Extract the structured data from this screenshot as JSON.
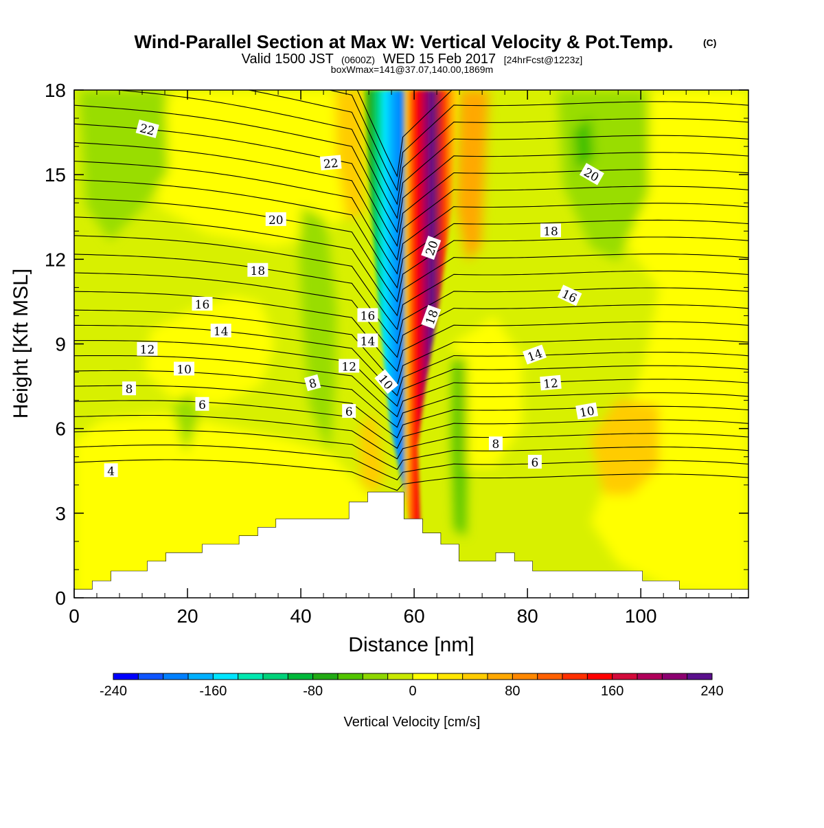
{
  "chart_data": {
    "type": "heatmap",
    "title": "Wind-Parallel Section at Max W: Vertical Velocity & Pot.Temp.",
    "title_mark": "(C)",
    "subtitle": {
      "valid_prefix": "Valid 1500 JST",
      "utc": "(0600Z)",
      "date": "WED 15 Feb 2017",
      "forecast": "[24hrFcst@1223z]"
    },
    "box_info": "boxWmax=141@37.07,140.00,1869m",
    "xlabel": "Distance [nm]",
    "ylabel": "Height [Kft MSL]",
    "xlim": [
      0,
      119
    ],
    "ylim": [
      0,
      18
    ],
    "x_ticks": [
      0,
      20,
      40,
      60,
      80,
      100
    ],
    "y_ticks": [
      0,
      3,
      6,
      9,
      12,
      15,
      18
    ],
    "colorbar": {
      "label": "Vertical Velocity [cm/s]",
      "range": [
        -240,
        240
      ],
      "step": 20,
      "tick_labels": [
        -240,
        -160,
        -80,
        0,
        80,
        160,
        240
      ],
      "colors": [
        "#0000ff",
        "#0f55ff",
        "#0080ff",
        "#00b0ff",
        "#00e5ff",
        "#00e8b0",
        "#00d27a",
        "#00b83a",
        "#22aa14",
        "#52c400",
        "#8ed600",
        "#c8e800",
        "#ffff00",
        "#ffe600",
        "#ffcc00",
        "#ffa800",
        "#ff8800",
        "#ff6000",
        "#ff3000",
        "#ff0000",
        "#d20a3a",
        "#b0005a",
        "#8c0070",
        "#5a108c"
      ]
    },
    "terrain": {
      "x": [
        0,
        3.2,
        3.2,
        6.5,
        6.5,
        9.7,
        9.7,
        12.9,
        12.9,
        16.2,
        16.2,
        19.4,
        19.4,
        22.6,
        22.6,
        25.9,
        25.9,
        29.1,
        29.1,
        32.4,
        32.4,
        35.6,
        35.6,
        38.8,
        38.8,
        42.1,
        42.1,
        45.3,
        45.3,
        48.5,
        48.5,
        51.8,
        51.8,
        55.0,
        55.0,
        58.2,
        58.2,
        61.5,
        61.5,
        64.7,
        64.7,
        67.9,
        67.9,
        71.2,
        71.2,
        74.4,
        74.4,
        77.7,
        77.7,
        80.9,
        80.9,
        84.1,
        84.1,
        87.4,
        87.4,
        100.3,
        100.3,
        106.8,
        106.8,
        119
      ],
      "height": [
        0.3,
        0.3,
        0.6,
        0.6,
        0.95,
        0.95,
        0.95,
        0.95,
        1.3,
        1.3,
        1.6,
        1.6,
        1.6,
        1.6,
        1.9,
        1.9,
        1.9,
        1.9,
        2.2,
        2.2,
        2.5,
        2.5,
        2.8,
        2.8,
        2.8,
        2.8,
        2.8,
        2.8,
        2.8,
        2.8,
        3.4,
        3.4,
        3.75,
        3.75,
        3.75,
        3.75,
        2.8,
        2.8,
        2.3,
        2.3,
        1.9,
        1.9,
        1.3,
        1.3,
        1.3,
        1.3,
        1.6,
        1.6,
        1.3,
        1.3,
        0.95,
        0.95,
        0.95,
        0.95,
        0.95,
        0.95,
        0.6,
        0.6,
        0.3,
        0.3
      ]
    },
    "contour_labels": [
      {
        "text": "22",
        "x": 12.9,
        "y": 16.6,
        "angle": 15
      },
      {
        "text": "22",
        "x": 45.3,
        "y": 15.4,
        "angle": -5
      },
      {
        "text": "20",
        "x": 35.6,
        "y": 13.4,
        "angle": 0
      },
      {
        "text": "18",
        "x": 32.4,
        "y": 11.6,
        "angle": 0
      },
      {
        "text": "16",
        "x": 22.6,
        "y": 10.4,
        "angle": 0
      },
      {
        "text": "14",
        "x": 25.9,
        "y": 9.45,
        "angle": 0
      },
      {
        "text": "12",
        "x": 12.9,
        "y": 8.8,
        "angle": 0
      },
      {
        "text": "10",
        "x": 19.4,
        "y": 8.1,
        "angle": 0
      },
      {
        "text": "8",
        "x": 9.7,
        "y": 7.4,
        "angle": 0
      },
      {
        "text": "6",
        "x": 22.6,
        "y": 6.85,
        "angle": 0
      },
      {
        "text": "4",
        "x": 6.5,
        "y": 4.5,
        "angle": 0
      },
      {
        "text": "16",
        "x": 51.8,
        "y": 10.0,
        "angle": 0
      },
      {
        "text": "14",
        "x": 51.8,
        "y": 9.1,
        "angle": 0
      },
      {
        "text": "12",
        "x": 48.5,
        "y": 8.2,
        "angle": 0
      },
      {
        "text": "10",
        "x": 55.0,
        "y": 7.65,
        "angle": 50
      },
      {
        "text": "8",
        "x": 42.1,
        "y": 7.6,
        "angle": -15
      },
      {
        "text": "6",
        "x": 48.5,
        "y": 6.6,
        "angle": 0
      },
      {
        "text": "20",
        "x": 63.1,
        "y": 12.4,
        "angle": -70
      },
      {
        "text": "18",
        "x": 63.1,
        "y": 9.95,
        "angle": -70
      },
      {
        "text": "18",
        "x": 84.1,
        "y": 13.0,
        "angle": 0
      },
      {
        "text": "20",
        "x": 91.3,
        "y": 15.0,
        "angle": 30
      },
      {
        "text": "16",
        "x": 87.4,
        "y": 10.7,
        "angle": 25
      },
      {
        "text": "14",
        "x": 81.3,
        "y": 8.6,
        "angle": -20
      },
      {
        "text": "12",
        "x": 84.1,
        "y": 7.6,
        "angle": -5
      },
      {
        "text": "10",
        "x": 90.5,
        "y": 6.6,
        "angle": -10
      },
      {
        "text": "8",
        "x": 74.4,
        "y": 5.45,
        "angle": 0
      },
      {
        "text": "6",
        "x": 81.3,
        "y": 4.8,
        "angle": 0
      }
    ]
  }
}
